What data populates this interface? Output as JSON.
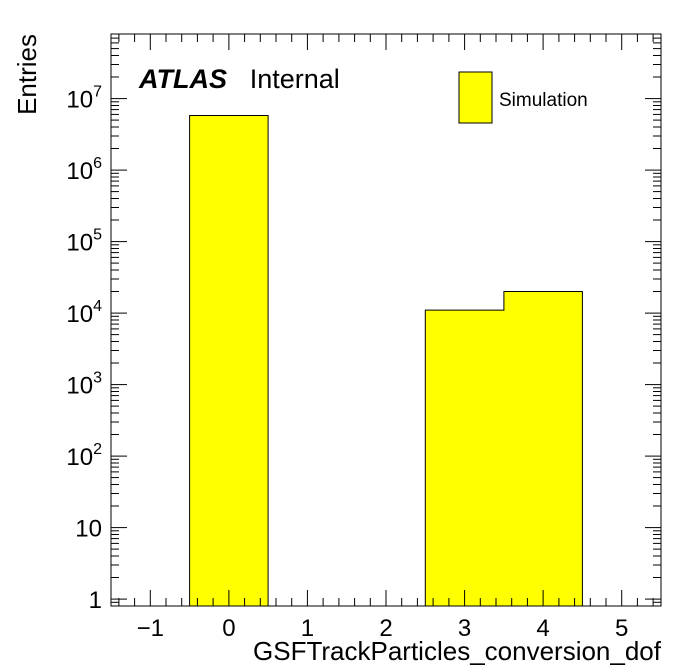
{
  "chart_data": {
    "type": "bar",
    "xlabel": "GSFTrackParticles_conversion_dof",
    "ylabel": "Entries",
    "xlim": [
      -1.5,
      5.5
    ],
    "ylim": [
      0.8,
      80000000
    ],
    "yscale": "log",
    "x_ticks": [
      "−1",
      "0",
      "1",
      "2",
      "3",
      "4",
      "5"
    ],
    "y_ticks": [
      {
        "base": "1",
        "exp": ""
      },
      {
        "base": "10",
        "exp": ""
      },
      {
        "base": "10",
        "exp": "2"
      },
      {
        "base": "10",
        "exp": "3"
      },
      {
        "base": "10",
        "exp": "4"
      },
      {
        "base": "10",
        "exp": "5"
      },
      {
        "base": "10",
        "exp": "6"
      },
      {
        "base": "10",
        "exp": "7"
      }
    ],
    "bins": [
      {
        "x_low": -0.5,
        "x_high": 0.5,
        "value": 5800000
      },
      {
        "x_low": 0.5,
        "x_high": 1.5,
        "value": 0
      },
      {
        "x_low": 1.5,
        "x_high": 2.5,
        "value": 0
      },
      {
        "x_low": 2.5,
        "x_high": 3.5,
        "value": 11000
      },
      {
        "x_low": 3.5,
        "x_high": 4.5,
        "value": 20000
      }
    ],
    "series": [
      {
        "name": "Simulation",
        "color": "#ffff00"
      }
    ],
    "legend_position": "top-right",
    "annotation": {
      "bold": "ATLAS",
      "text": "Internal"
    }
  }
}
